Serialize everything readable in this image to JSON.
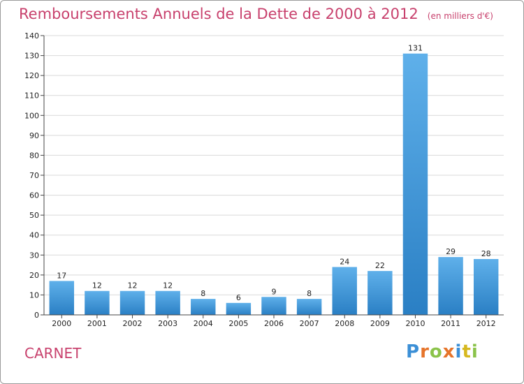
{
  "header": {
    "title": "Remboursements Annuels de la Dette de 2000 à 2012",
    "unit": "(en milliers d'€)"
  },
  "footer": {
    "commune": "CARNET",
    "logo": "Proxiti"
  },
  "colors": {
    "title": "#c8416d",
    "bar_top": "#5fb0ea",
    "bar_bottom": "#2a7fc4",
    "grid": "#d9d9d9",
    "axis": "#444444"
  },
  "chart_data": {
    "type": "bar",
    "categories": [
      "2000",
      "2001",
      "2002",
      "2003",
      "2004",
      "2005",
      "2006",
      "2007",
      "2008",
      "2009",
      "2010",
      "2011",
      "2012"
    ],
    "values": [
      17,
      12,
      12,
      12,
      8,
      6,
      9,
      8,
      24,
      22,
      131,
      29,
      28
    ],
    "title": "Remboursements Annuels de la Dette de 2000 à 2012",
    "ylim": [
      0,
      140
    ],
    "yticks": [
      0,
      10,
      20,
      30,
      40,
      50,
      60,
      70,
      80,
      90,
      100,
      110,
      120,
      130,
      140
    ],
    "grid": true,
    "data_labels": true
  }
}
